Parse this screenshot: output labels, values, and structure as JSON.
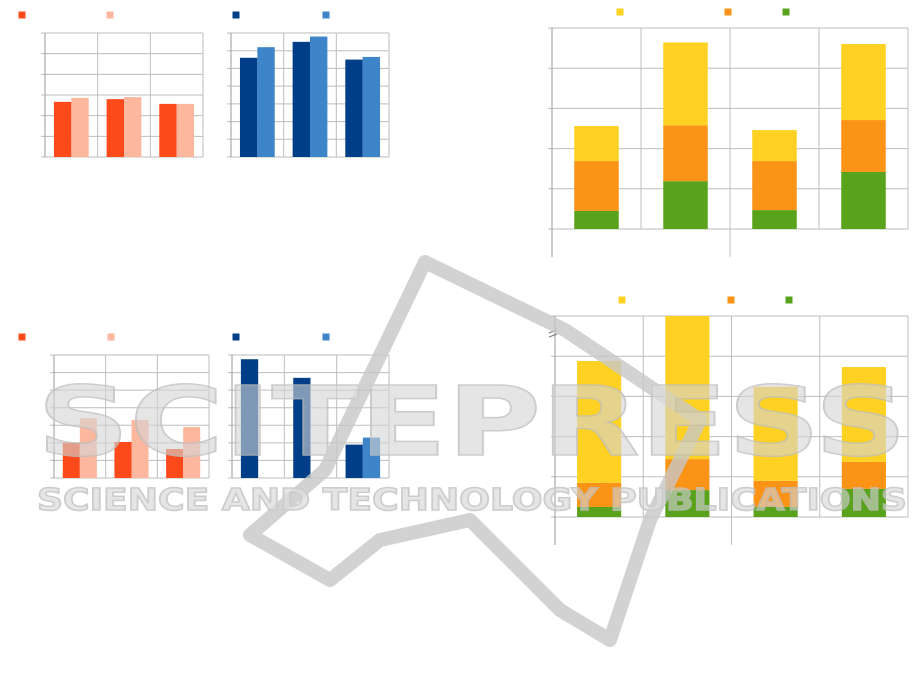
{
  "chart_data": [
    {
      "type": "bar",
      "categories": [
        null,
        null,
        null
      ],
      "ylim": [
        0,
        6
      ],
      "yticks": [
        0,
        1,
        2,
        3,
        4,
        5,
        6
      ],
      "grid": true,
      "series": [
        {
          "color": "#fc4a1a",
          "values": [
            2.67,
            2.8,
            2.57
          ]
        },
        {
          "color": "#fdb79f",
          "values": [
            2.86,
            2.9,
            2.57
          ]
        }
      ]
    },
    {
      "type": "bar",
      "categories": [
        null,
        null,
        null
      ],
      "ylim": [
        0,
        7
      ],
      "yticks": [
        0,
        1,
        2,
        3,
        4,
        5,
        6,
        7
      ],
      "grid": true,
      "series": [
        {
          "color": "#003f87",
          "values": [
            5.6,
            6.5,
            5.5
          ]
        },
        {
          "color": "#3d85c8",
          "values": [
            6.2,
            6.8,
            5.65
          ]
        }
      ]
    },
    {
      "type": "bar",
      "categories": [
        null,
        null,
        null
      ],
      "ylim": [
        0,
        7
      ],
      "yticks": [
        0,
        1,
        2,
        3,
        4,
        5,
        6,
        7
      ],
      "grid": true,
      "series": [
        {
          "color": "#fc4a1a",
          "values": [
            2.0,
            2.05,
            1.65
          ]
        },
        {
          "color": "#fdb79f",
          "values": [
            3.4,
            3.3,
            2.9
          ]
        }
      ]
    },
    {
      "type": "bar",
      "categories": [
        null,
        null,
        null
      ],
      "ylim": [
        0,
        7
      ],
      "yticks": [
        0,
        1,
        2,
        3,
        4,
        5,
        6,
        7
      ],
      "grid": true,
      "series": [
        {
          "color": "#003f87",
          "values": [
            6.76,
            5.7,
            1.9
          ]
        },
        {
          "color": "#3d85c8",
          "values": [
            null,
            null,
            2.3
          ]
        }
      ]
    },
    {
      "type": "stacked-bar",
      "categories": [
        null,
        null,
        null,
        null
      ],
      "ylim": [
        0,
        5
      ],
      "yticks": [
        0,
        1,
        2,
        3,
        4,
        5
      ],
      "grid": true,
      "series": [
        {
          "color": "#fed122",
          "values": [
            0.87,
            2.06,
            0.77,
            1.89
          ]
        },
        {
          "color": "#fb9316",
          "values": [
            1.24,
            1.39,
            1.22,
            1.29
          ]
        },
        {
          "color": "#58a21c",
          "values": [
            0.45,
            1.19,
            0.47,
            1.42
          ]
        }
      ]
    },
    {
      "type": "stacked-bar",
      "categories": [
        null,
        null,
        null,
        null
      ],
      "ylim": [
        0,
        5
      ],
      "yticks": [
        0,
        1,
        2,
        3,
        4,
        5
      ],
      "grid": true,
      "series": [
        {
          "color": "#fed122",
          "values": [
            3.03,
            3.56,
            2.34,
            2.36
          ]
        },
        {
          "color": "#fb9316",
          "values": [
            0.6,
            0.77,
            0.65,
            0.67
          ]
        },
        {
          "color": "#58a21c",
          "values": [
            0.25,
            0.67,
            0.25,
            0.7
          ]
        }
      ]
    }
  ],
  "watermark": {
    "title": "SCITEPRESS",
    "subtitle": "SCIENCE AND TECHNOLOGY PUBLICATIONS"
  }
}
